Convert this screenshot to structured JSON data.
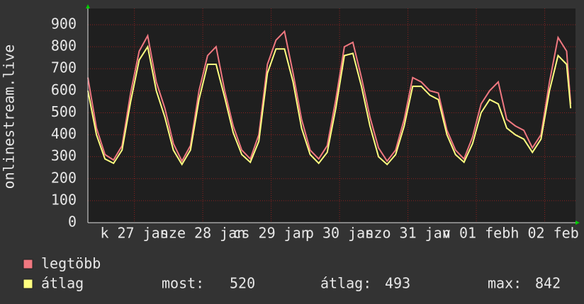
{
  "chart_data": {
    "type": "line",
    "y_label": "onlinestream.live",
    "x": [
      0,
      0.125,
      0.25,
      0.375,
      0.5,
      0.625,
      0.75,
      0.875,
      1,
      1.125,
      1.25,
      1.375,
      1.5,
      1.625,
      1.75,
      1.875,
      2,
      2.125,
      2.25,
      2.375,
      2.5,
      2.625,
      2.75,
      2.875,
      3,
      3.125,
      3.25,
      3.375,
      3.5,
      3.625,
      3.75,
      3.875,
      4,
      4.125,
      4.25,
      4.375,
      4.5,
      4.625,
      4.75,
      4.875,
      5,
      5.125,
      5.25,
      5.375,
      5.5,
      5.625,
      5.75,
      5.875,
      6,
      6.125,
      6.25,
      6.375,
      6.5,
      6.625,
      6.75,
      6.875,
      7,
      7.06
    ],
    "xlim": [
      0,
      7.13
    ],
    "xticks": [
      {
        "value": 0.68,
        "label": "k 27 jan"
      },
      {
        "value": 1.68,
        "label": "sze 28 jan"
      },
      {
        "value": 2.68,
        "label": "cs 29 jan"
      },
      {
        "value": 3.68,
        "label": "p 30 jan"
      },
      {
        "value": 4.68,
        "label": "szo 31 jan"
      },
      {
        "value": 5.68,
        "label": "v 01 feb"
      },
      {
        "value": 6.68,
        "label": "h 02 feb"
      }
    ],
    "ylim": [
      0,
      974
    ],
    "yticks": [
      0,
      100,
      200,
      300,
      400,
      500,
      600,
      700,
      800,
      900
    ],
    "grid": true,
    "series": [
      {
        "name": "legtöbb",
        "color": "#f07880",
        "values": [
          660,
          430,
          310,
          285,
          350,
          590,
          780,
          850,
          640,
          520,
          360,
          280,
          350,
          600,
          760,
          800,
          600,
          440,
          330,
          290,
          400,
          720,
          830,
          870,
          680,
          470,
          330,
          290,
          350,
          560,
          800,
          820,
          660,
          480,
          340,
          280,
          330,
          470,
          660,
          640,
          600,
          590,
          420,
          330,
          290,
          390,
          540,
          600,
          640,
          470,
          440,
          420,
          340,
          400,
          640,
          842,
          780,
          540
        ]
      },
      {
        "name": "átlag",
        "color": "#ffff80",
        "values": [
          600,
          400,
          290,
          270,
          330,
          550,
          740,
          800,
          600,
          480,
          330,
          265,
          330,
          560,
          720,
          720,
          570,
          410,
          310,
          275,
          370,
          680,
          790,
          790,
          640,
          430,
          310,
          270,
          320,
          520,
          760,
          770,
          620,
          440,
          300,
          265,
          310,
          440,
          620,
          620,
          580,
          560,
          400,
          310,
          275,
          360,
          500,
          560,
          540,
          430,
          400,
          380,
          320,
          380,
          600,
          760,
          720,
          520
        ]
      }
    ],
    "stats": [
      {
        "label": "most:",
        "value": 520
      },
      {
        "label": "átlag:",
        "value": 493
      },
      {
        "label": "max:",
        "value": 842
      }
    ]
  }
}
